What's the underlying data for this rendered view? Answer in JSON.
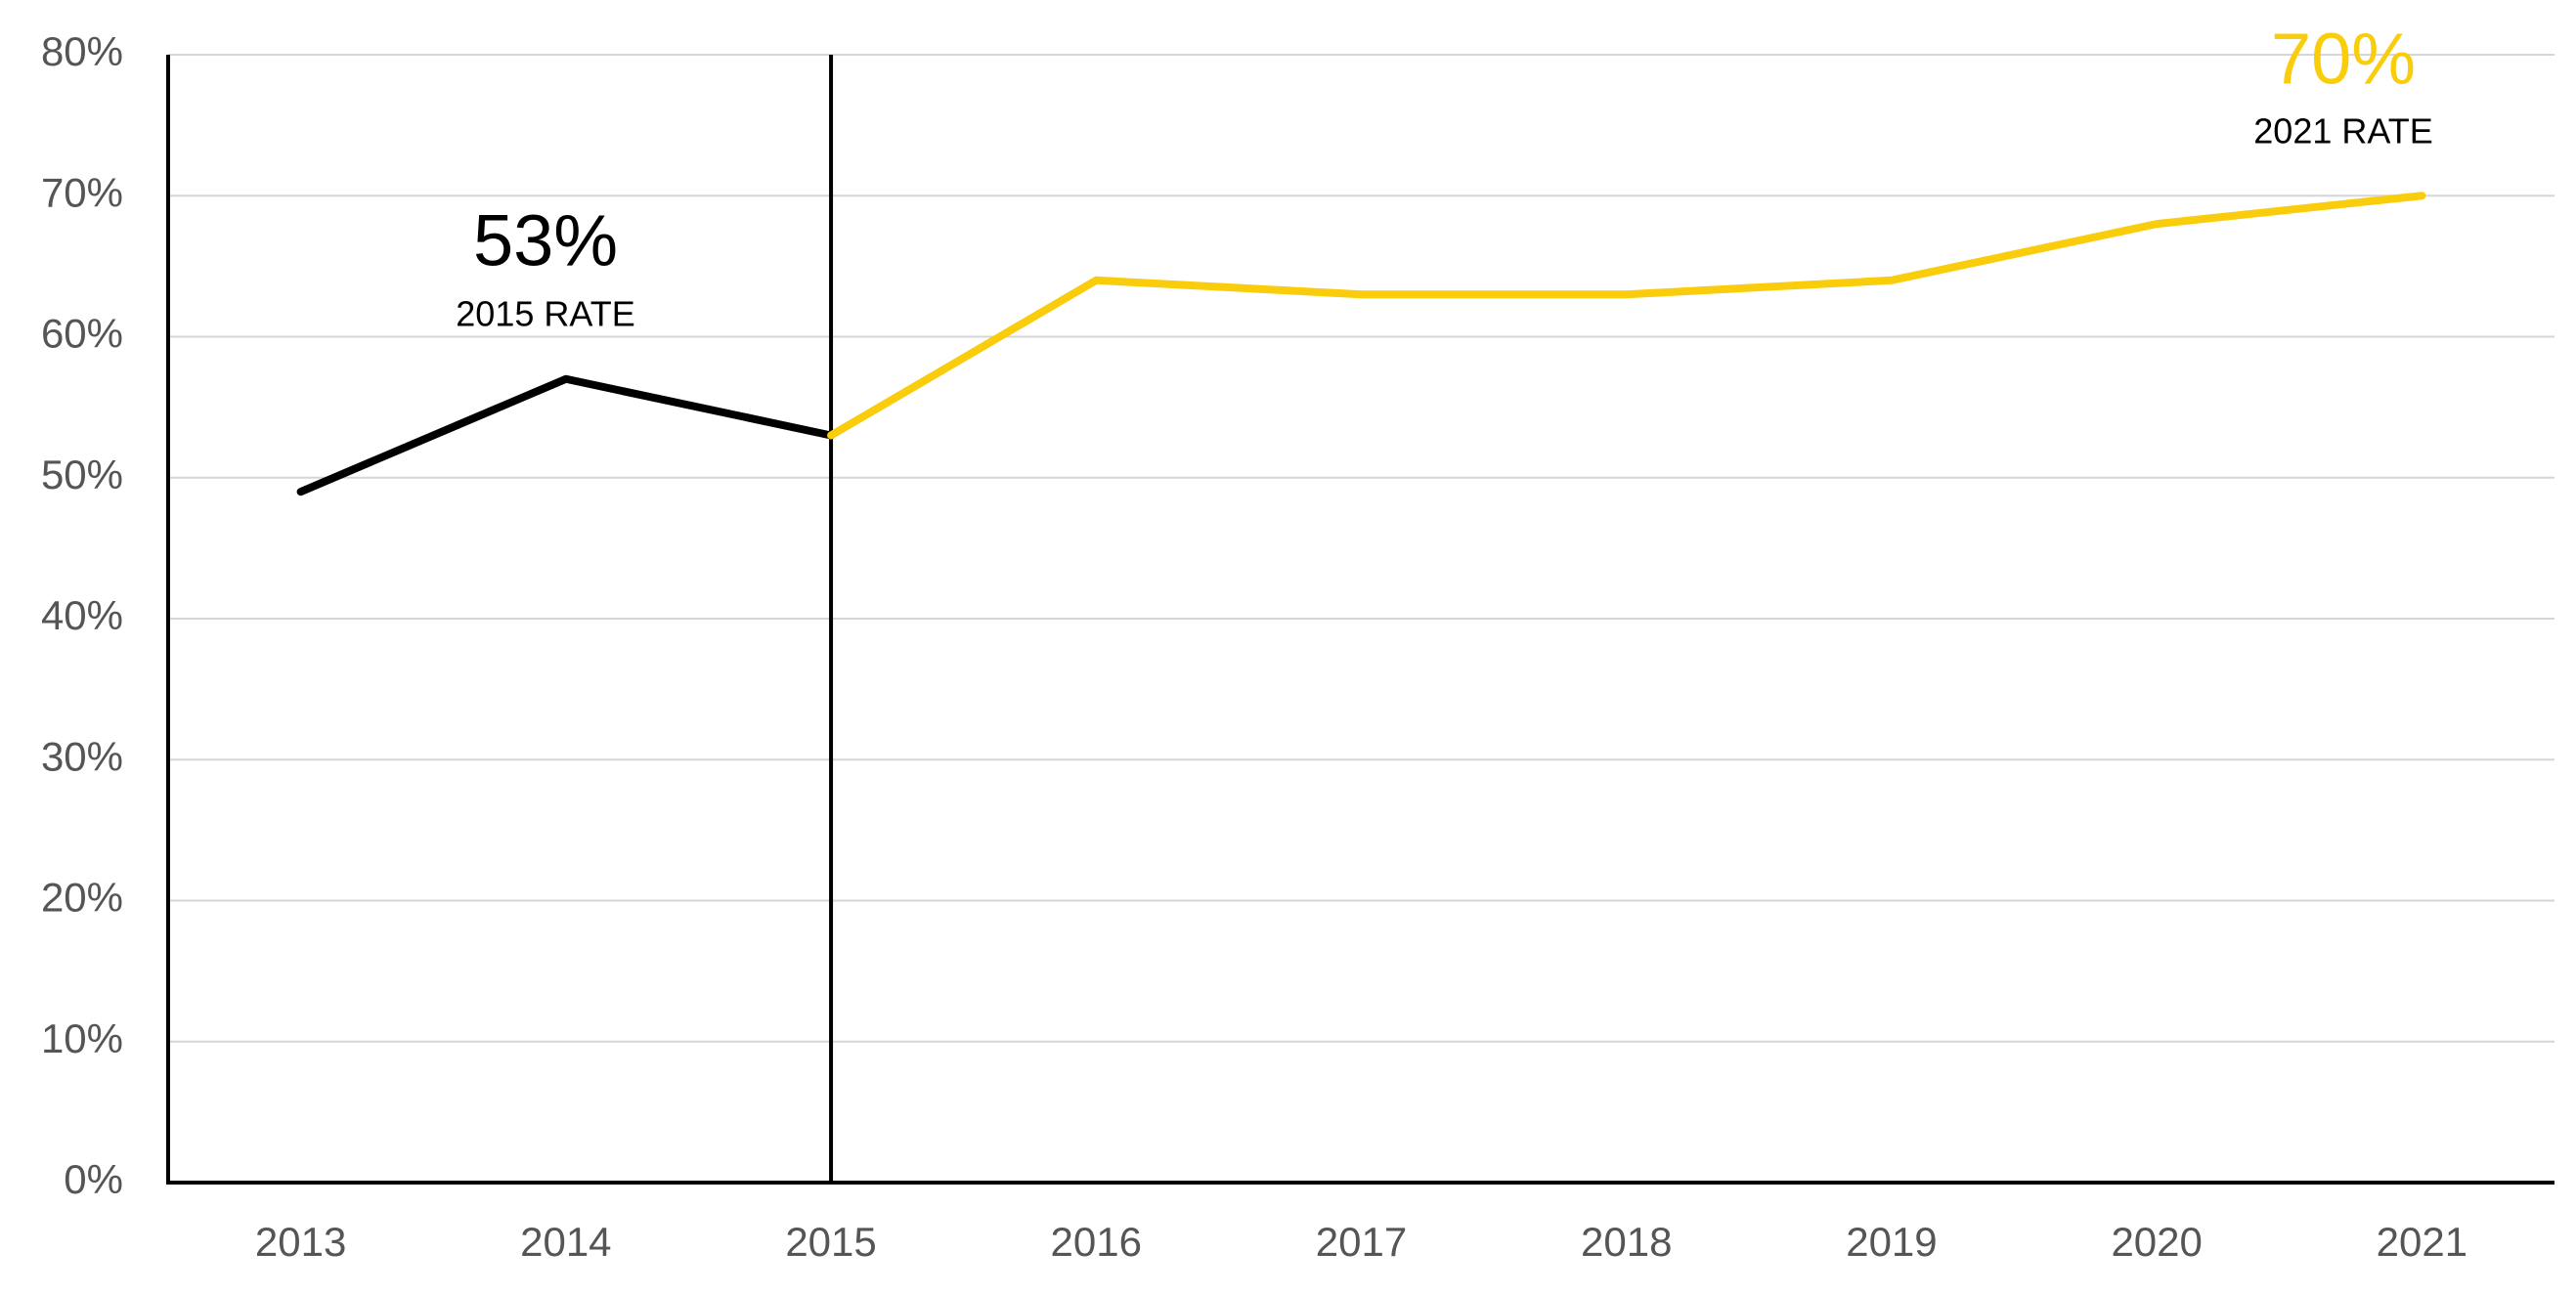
{
  "chart_data": {
    "type": "line",
    "categories": [
      "2013",
      "2014",
      "2015",
      "2016",
      "2017",
      "2018",
      "2019",
      "2020",
      "2021"
    ],
    "series": [
      {
        "color": "#000000",
        "values": [
          49,
          57,
          53,
          null,
          null,
          null,
          null,
          null,
          null
        ]
      },
      {
        "color": "#f9cc0c",
        "values": [
          null,
          null,
          53,
          64,
          63,
          63,
          64,
          68,
          70
        ]
      }
    ],
    "ylim": [
      0,
      80
    ],
    "yticks": [
      {
        "value": 0,
        "label": "0%"
      },
      {
        "value": 10,
        "label": "10%"
      },
      {
        "value": 20,
        "label": "20%"
      },
      {
        "value": 30,
        "label": "30%"
      },
      {
        "value": 40,
        "label": "40%"
      },
      {
        "value": 50,
        "label": "50%"
      },
      {
        "value": 60,
        "label": "60%"
      },
      {
        "value": 70,
        "label": "70%"
      },
      {
        "value": 80,
        "label": "80%"
      }
    ],
    "grid": true,
    "annotations": [
      {
        "text": "53%",
        "subtext": "2015 RATE"
      },
      {
        "text": "70%",
        "subtext": "2021 RATE"
      }
    ]
  }
}
